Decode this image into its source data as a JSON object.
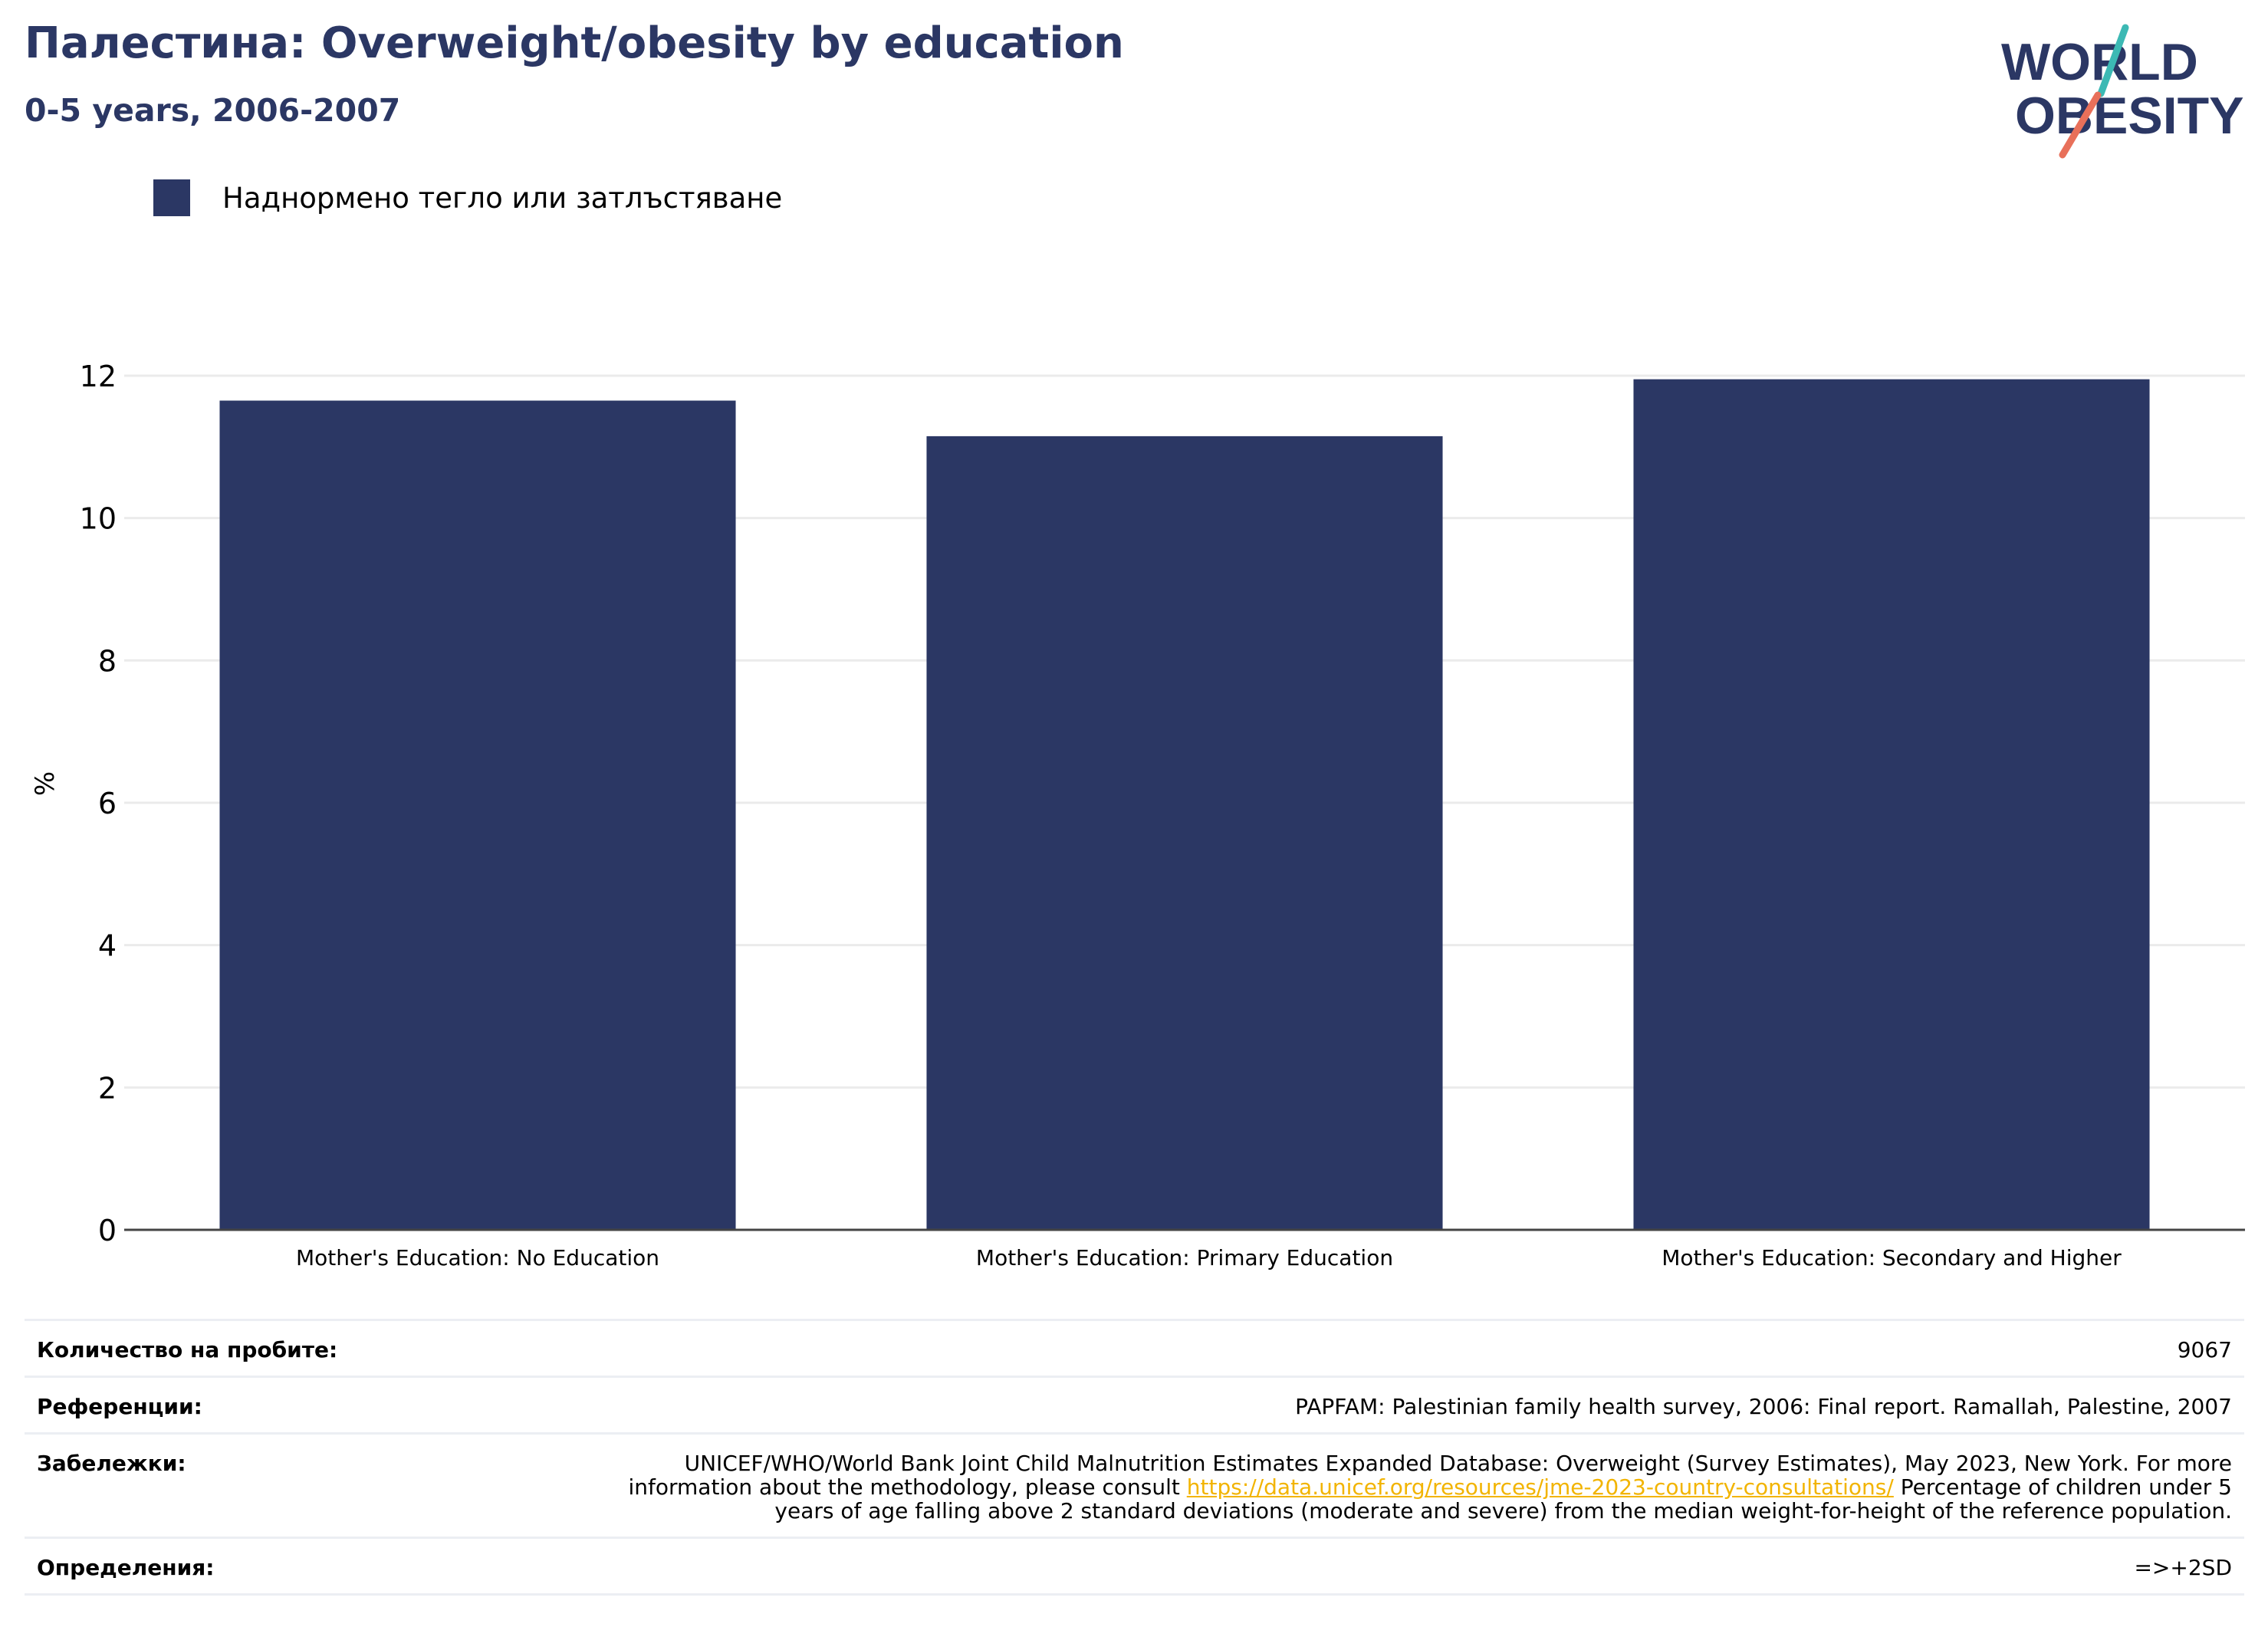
{
  "header": {
    "title": "Палестина: Overweight/obesity by education",
    "subtitle": "0-5 years, 2006-2007"
  },
  "logo": {
    "line1": "WORLD",
    "line2": "OBESITY",
    "text_color": "#2b3764",
    "slash_top_color": "#3cb9b4",
    "slash_bottom_color": "#e8705a"
  },
  "legend": {
    "label": "Наднормено тегло или затлъстяване",
    "color": "#2b3764"
  },
  "chart_data": {
    "type": "bar",
    "categories": [
      "Mother's Education: No Education",
      "Mother's Education: Primary Education",
      "Mother's Education: Secondary and Higher"
    ],
    "series": [
      {
        "name": "Наднормено тегло или затлъстяване",
        "values": [
          11.65,
          11.15,
          11.95
        ],
        "color": "#2b3764"
      }
    ],
    "xlabel": "",
    "ylabel": "%",
    "ylim": [
      0,
      12
    ],
    "yticks": [
      0,
      2,
      4,
      6,
      8,
      10,
      12
    ],
    "grid": true,
    "legend_position": "top-left"
  },
  "info": {
    "sample_size": {
      "label": "Количество на пробите:",
      "value": "9067"
    },
    "references": {
      "label": "Референции:",
      "value": "PAPFAM: Palestinian family health survey, 2006: Final report. Ramallah, Palestine, 2007"
    },
    "notes": {
      "label": "Забележки:",
      "text_before": "UNICEF/WHO/World Bank Joint Child Malnutrition Estimates Expanded Database: Overweight (Survey Estimates), May 2023, New York. For more information about the methodology, please consult ",
      "link": "https://data.unicef.org/resources/jme-2023-country-consultations/",
      "text_after": " Percentage of children under 5 years of age falling above 2 standard deviations (moderate and severe) from the median weight-for-height of the reference population."
    },
    "definitions": {
      "label": "Определения:",
      "value": "=>+2SD"
    }
  }
}
